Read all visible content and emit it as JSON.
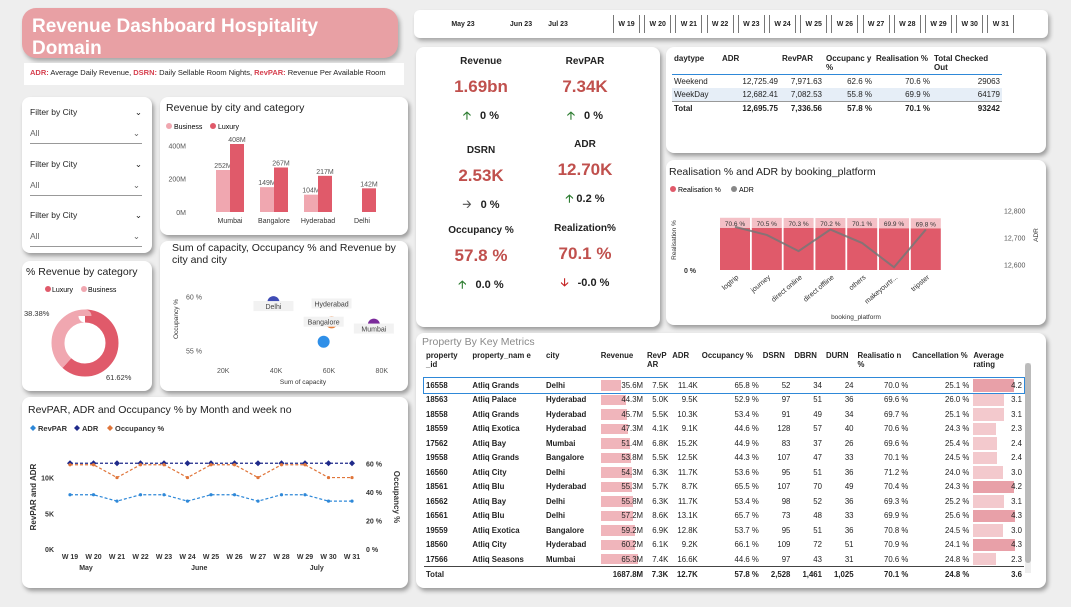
{
  "header": {
    "title": "Revenue Dashboard Hospitality Domain"
  },
  "legend_defs": {
    "adr_key": "ADR:",
    "adr_text": " Average Daily Revenue, ",
    "dsrn_key": "DSRN:",
    "dsrn_text": " Daily Sellable Room Nights, ",
    "revpar_key": "RevPAR:",
    "revpar_text": " Revenue Per Available Room"
  },
  "week_slicer": {
    "months": [
      "May 23",
      "Jun 23",
      "Jul 23"
    ],
    "weeks": [
      "W 19",
      "W 20",
      "W 21",
      "W 22",
      "W 23",
      "W 24",
      "W 25",
      "W 26",
      "W 27",
      "W 28",
      "W 29",
      "W 30",
      "W 31"
    ]
  },
  "filters": [
    {
      "label": "Filter by City",
      "value": "All"
    },
    {
      "label": "Filter by City",
      "value": "All"
    },
    {
      "label": "Filter by City",
      "value": "All"
    }
  ],
  "kpis": {
    "revenue": {
      "label": "Revenue",
      "value": "1.69bn",
      "change": "0 %",
      "trend": "up"
    },
    "revpar": {
      "label": "RevPAR",
      "value": "7.34K",
      "change": "0 %",
      "trend": "up"
    },
    "dsrn": {
      "label": "DSRN",
      "value": "2.53K",
      "change": "0 %",
      "trend": "flat"
    },
    "adr": {
      "label": "ADR",
      "value": "12.70K",
      "change": "0.2 %",
      "trend": "up"
    },
    "occupancy": {
      "label": "Occupancy %",
      "value": "57.8 %",
      "change": "0.0 %",
      "trend": "up"
    },
    "realization": {
      "label": "Realization%",
      "value": "70.1 %",
      "change": "-0.0 %",
      "trend": "down"
    }
  },
  "daytype_table": {
    "headers": [
      "daytype",
      "ADR",
      "RevPAR",
      "Occupanc y %",
      "Realisation %",
      "Total Checked Out"
    ],
    "rows": [
      [
        "Weekend",
        "12,725.49",
        "7,971.63",
        "62.6 %",
        "70.6 %",
        "29063"
      ],
      [
        "WeekDay",
        "12,682.41",
        "7,082.53",
        "55.8 %",
        "69.9 %",
        "64179"
      ]
    ],
    "total": [
      "Total",
      "12,695.75",
      "7,336.56",
      "57.8 %",
      "70.1 %",
      "93242"
    ]
  },
  "rev_city_chart": {
    "title": "Revenue by city and category",
    "legend": [
      "Business",
      "Luxury"
    ]
  },
  "pct_rev_chart": {
    "title": "% Revenue by category",
    "legend": [
      "Luxury",
      "Business"
    ]
  },
  "scatter_chart": {
    "title": "Sum of capacity, Occupancy % and Revenue by city and city"
  },
  "platform_chart": {
    "title": "Realisation % and ADR by booking_platform",
    "legend": [
      "Realisation %",
      "ADR"
    ]
  },
  "trend_chart": {
    "title": "RevPAR, ADR and Occupancy % by Month and week no",
    "legend": [
      "RevPAR",
      "ADR",
      "Occupancy %"
    ]
  },
  "property_table": {
    "title": "Property By Key Metrics",
    "headers": [
      "property _id",
      "property_nam e",
      "city",
      "Revenue",
      "RevP AR",
      "ADR",
      "Occupancy %",
      "DSRN",
      "DBRN",
      "DURN",
      "Realisatio n %",
      "Cancellation %",
      "Average rating"
    ],
    "rows": [
      [
        "16558",
        "Atliq Grands",
        "Delhi",
        "35.6M",
        "7.5K",
        "11.4K",
        "65.8 %",
        "52",
        "34",
        "24",
        "70.0 %",
        "25.1 %",
        "4.2"
      ],
      [
        "18563",
        "Atliq Palace",
        "Hyderabad",
        "44.3M",
        "5.0K",
        "9.5K",
        "52.9 %",
        "97",
        "51",
        "36",
        "69.6 %",
        "26.0 %",
        "3.1"
      ],
      [
        "18558",
        "Atliq Grands",
        "Hyderabad",
        "45.7M",
        "5.5K",
        "10.3K",
        "53.4 %",
        "91",
        "49",
        "34",
        "69.7 %",
        "25.1 %",
        "3.1"
      ],
      [
        "18559",
        "Atliq Exotica",
        "Hyderabad",
        "47.3M",
        "4.1K",
        "9.1K",
        "44.6 %",
        "128",
        "57",
        "40",
        "70.6 %",
        "24.3 %",
        "2.3"
      ],
      [
        "17562",
        "Atliq Bay",
        "Mumbai",
        "51.4M",
        "6.8K",
        "15.2K",
        "44.9 %",
        "83",
        "37",
        "26",
        "69.6 %",
        "25.4 %",
        "2.4"
      ],
      [
        "19558",
        "Atliq Grands",
        "Bangalore",
        "53.8M",
        "5.5K",
        "12.5K",
        "44.3 %",
        "107",
        "47",
        "33",
        "70.1 %",
        "24.5 %",
        "2.4"
      ],
      [
        "16560",
        "Atliq City",
        "Delhi",
        "54.3M",
        "6.3K",
        "11.7K",
        "53.6 %",
        "95",
        "51",
        "36",
        "71.2 %",
        "24.0 %",
        "3.0"
      ],
      [
        "18561",
        "Atliq Blu",
        "Hyderabad",
        "55.3M",
        "5.7K",
        "8.7K",
        "65.5 %",
        "107",
        "70",
        "49",
        "70.4 %",
        "24.3 %",
        "4.2"
      ],
      [
        "16562",
        "Atliq Bay",
        "Delhi",
        "55.8M",
        "6.3K",
        "11.7K",
        "53.4 %",
        "98",
        "52",
        "36",
        "69.3 %",
        "25.2 %",
        "3.1"
      ],
      [
        "16561",
        "Atliq Blu",
        "Delhi",
        "57.2M",
        "8.6K",
        "13.1K",
        "65.7 %",
        "73",
        "48",
        "33",
        "69.9 %",
        "25.6 %",
        "4.3"
      ],
      [
        "19559",
        "Atliq Exotica",
        "Bangalore",
        "59.2M",
        "6.9K",
        "12.8K",
        "53.7 %",
        "95",
        "51",
        "36",
        "70.8 %",
        "24.5 %",
        "3.0"
      ],
      [
        "18560",
        "Atliq City",
        "Hyderabad",
        "60.2M",
        "6.1K",
        "9.2K",
        "66.1 %",
        "109",
        "72",
        "51",
        "70.9 %",
        "24.1 %",
        "4.3"
      ],
      [
        "17566",
        "Atliq Seasons",
        "Mumbai",
        "65.3M",
        "7.4K",
        "16.6K",
        "44.6 %",
        "97",
        "43",
        "31",
        "70.6 %",
        "24.8 %",
        "2.3"
      ]
    ],
    "total": [
      "Total",
      "",
      "",
      "1687.8M",
      "7.3K",
      "12.7K",
      "57.8 %",
      "2,528",
      "1,461",
      "1,025",
      "70.1 %",
      "24.8 %",
      "3.6"
    ]
  },
  "chart_data": [
    {
      "type": "bar",
      "title": "Revenue by city and category",
      "categories": [
        "Mumbai",
        "Bangalore",
        "Hyderabad",
        "Delhi"
      ],
      "series": [
        {
          "name": "Business",
          "values": [
            252,
            149,
            104,
            null
          ]
        },
        {
          "name": "Luxury",
          "values": [
            408,
            267,
            217,
            142
          ]
        }
      ],
      "value_labels": [
        [
          "252M",
          "408M"
        ],
        [
          "149M",
          "267M"
        ],
        [
          "104M",
          "217M"
        ],
        [
          "",
          "142M"
        ]
      ],
      "y_ticks": [
        "0M",
        "200M",
        "400M"
      ],
      "ylim": [
        0,
        450
      ]
    },
    {
      "type": "pie",
      "title": "% Revenue by category",
      "slices": [
        {
          "name": "Luxury",
          "value": 61.62,
          "label": "61.62%"
        },
        {
          "name": "Business",
          "value": 38.38,
          "label": "38.38%"
        }
      ]
    },
    {
      "type": "scatter",
      "title": "Sum of capacity, Occupancy % and Revenue by city and city",
      "xlabel": "Sum of capacity",
      "ylabel": "Occupancy %",
      "x_ticks": [
        "20K",
        "40K",
        "60K",
        "80K"
      ],
      "y_ticks": [
        "55 %",
        "60 %"
      ],
      "xlim": [
        15,
        85
      ],
      "ylim": [
        54,
        61
      ],
      "points": [
        {
          "name": "Delhi",
          "x": 39,
          "y": 59.5,
          "color": "#3f4cb5"
        },
        {
          "name": "Hyderabad",
          "x": 61,
          "y": 57.6,
          "color": "#e8803a"
        },
        {
          "name": "Bangalore",
          "x": 58,
          "y": 55.8,
          "color": "#2f8fe8"
        },
        {
          "name": "Mumbai",
          "x": 77,
          "y": 57.4,
          "color": "#7b2a9b"
        }
      ]
    },
    {
      "type": "bar",
      "title": "Realisation % and ADR by booking_platform",
      "xlabel": "booking_platform",
      "ylabel": "Realisation %",
      "y2label": "ADR",
      "categories": [
        "logtrip",
        "journey",
        "direct online",
        "direct offline",
        "others",
        "makeyourtr...",
        "tripster"
      ],
      "series": [
        {
          "name": "Realisation %",
          "values": [
            70.6,
            70.5,
            70.3,
            70.2,
            70.1,
            69.9,
            69.8
          ],
          "labels": [
            "70.6 %",
            "70.5 %",
            "70.3 %",
            "70.2 %",
            "70.1 %",
            "69.9 %",
            "69.8 %"
          ]
        },
        {
          "name": "ADR",
          "values": [
            12740,
            12710,
            12650,
            12730,
            12680,
            12590,
            12730
          ]
        }
      ],
      "y_ticks": [
        "0 %",
        "50 %"
      ],
      "y2_ticks": [
        "12,600",
        "12,700",
        "12,800"
      ],
      "y2lim": [
        12580,
        12810
      ]
    },
    {
      "type": "line",
      "title": "RevPAR, ADR and Occupancy % by Month and week no",
      "x": [
        "W 19",
        "W 20",
        "W 21",
        "W 22",
        "W 23",
        "W 24",
        "W 25",
        "W 26",
        "W 27",
        "W 28",
        "W 29",
        "W 30",
        "W 31"
      ],
      "months": [
        "May",
        "June",
        "July"
      ],
      "ylabel": "RevPAR and ADR",
      "y2label": "Occupancy %",
      "y_ticks": [
        "0K",
        "5K",
        "10K"
      ],
      "y2_ticks": [
        "0 %",
        "20 %",
        "40 %",
        "60 %"
      ],
      "ylim": [
        0,
        14000
      ],
      "y2lim": [
        0,
        70
      ],
      "series": [
        {
          "name": "RevPAR",
          "axis": "left",
          "color": "#2e88d8",
          "values": [
            7600,
            7600,
            6700,
            7600,
            7600,
            6700,
            7600,
            7600,
            6700,
            7600,
            7600,
            6700,
            6700
          ]
        },
        {
          "name": "ADR",
          "axis": "right",
          "color": "#1f2a8a",
          "values": [
            60,
            60,
            60,
            60,
            60,
            60,
            60,
            60,
            60,
            60,
            60,
            60,
            60
          ]
        },
        {
          "name": "Occupancy %",
          "axis": "right",
          "color": "#e0753a",
          "values": [
            59,
            59,
            50,
            59,
            59,
            50,
            59,
            59,
            50,
            59,
            59,
            50,
            50
          ]
        }
      ]
    }
  ],
  "colors": {
    "accent": "#c0504d",
    "luxury": "#e05a6a",
    "business": "#f0a7b0",
    "title_bg": "#e8a0a4"
  }
}
